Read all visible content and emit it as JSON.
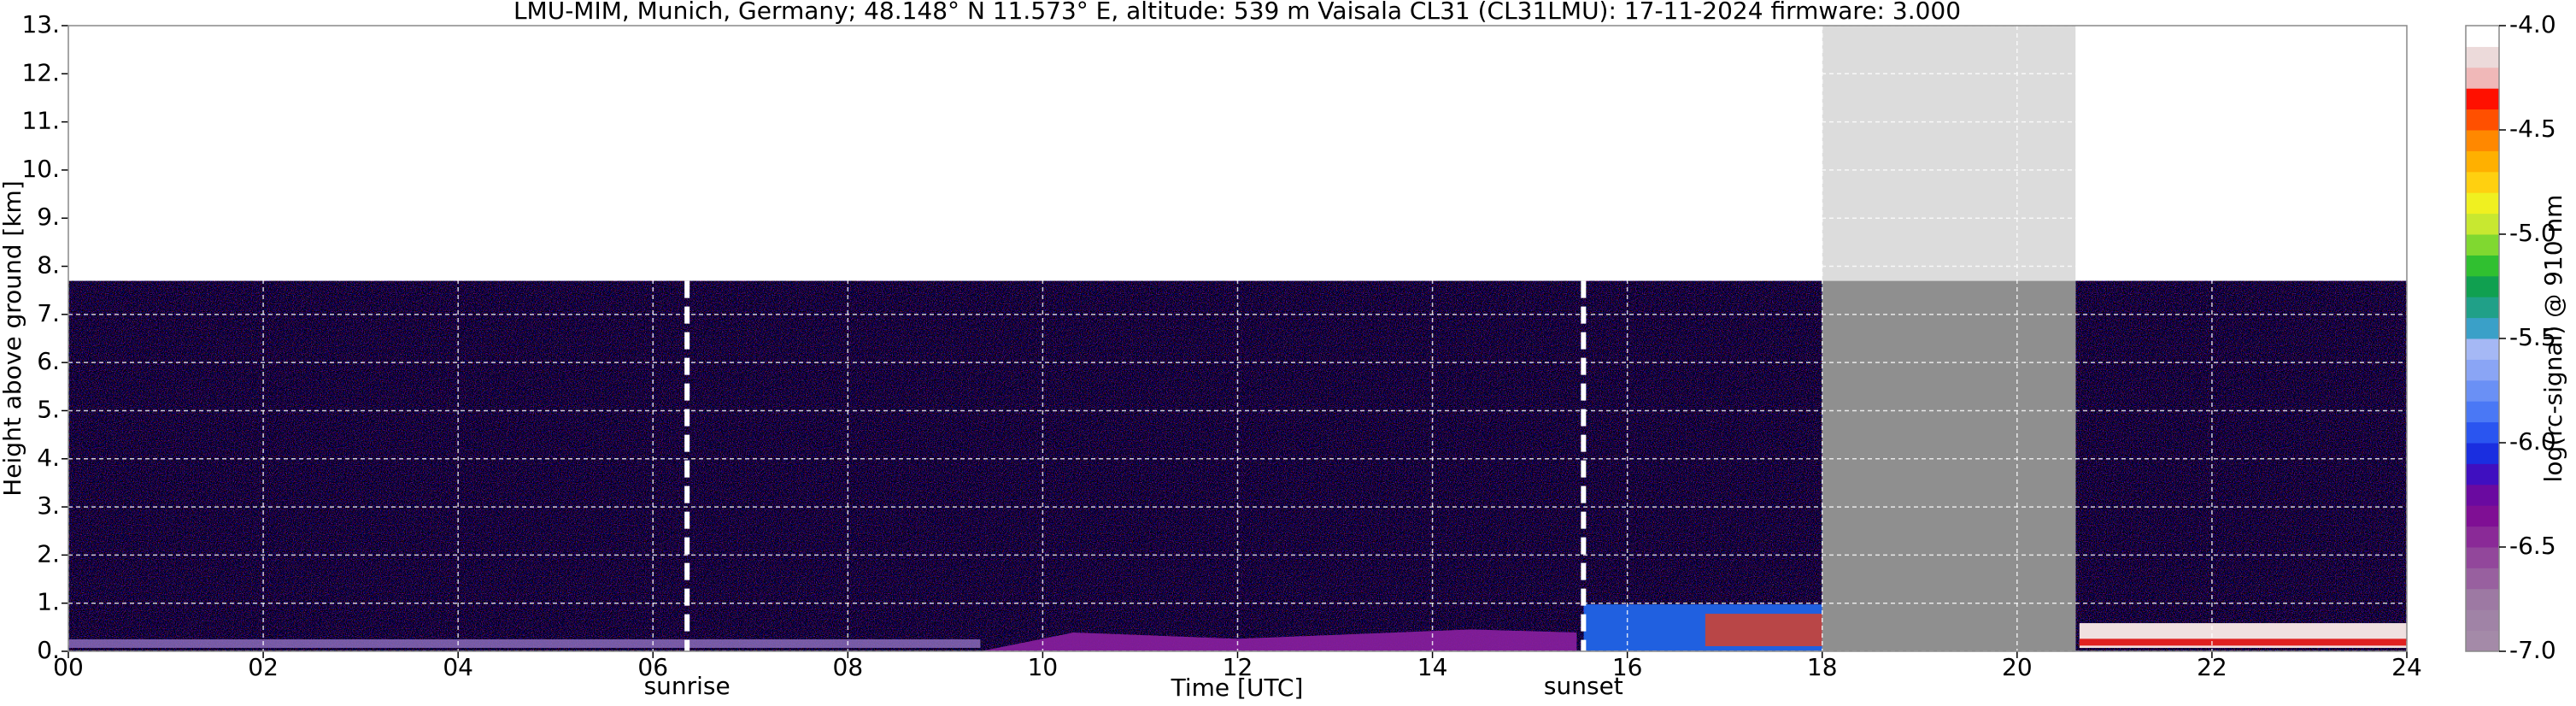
{
  "chart_data": {
    "type": "heatmap",
    "title": "LMU-MIM, Munich, Germany; 48.148° N 11.573° E, altitude: 539 m    Vaisala CL31 (CL31LMU): 17-11-2024    firmware: 3.000",
    "xlabel": "Time [UTC]",
    "ylabel": "Height above ground [km]",
    "xlim": [
      0,
      24
    ],
    "ylim": [
      0,
      13
    ],
    "xticks": [
      {
        "value": 0,
        "label": "00"
      },
      {
        "value": 2,
        "label": "02"
      },
      {
        "value": 4,
        "label": "04"
      },
      {
        "value": 6,
        "label": "06"
      },
      {
        "value": 8,
        "label": "08"
      },
      {
        "value": 10,
        "label": "10"
      },
      {
        "value": 12,
        "label": "12"
      },
      {
        "value": 14,
        "label": "14"
      },
      {
        "value": 16,
        "label": "16"
      },
      {
        "value": 18,
        "label": "18"
      },
      {
        "value": 20,
        "label": "20"
      },
      {
        "value": 22,
        "label": "22"
      },
      {
        "value": 24,
        "label": "24"
      }
    ],
    "yticks": [
      {
        "value": 0,
        "label": "0."
      },
      {
        "value": 1,
        "label": "1."
      },
      {
        "value": 2,
        "label": "2."
      },
      {
        "value": 3,
        "label": "3."
      },
      {
        "value": 4,
        "label": "4."
      },
      {
        "value": 5,
        "label": "5."
      },
      {
        "value": 6,
        "label": "6."
      },
      {
        "value": 7,
        "label": "7."
      },
      {
        "value": 8,
        "label": "8."
      },
      {
        "value": 9,
        "label": "9."
      },
      {
        "value": 10,
        "label": "10."
      },
      {
        "value": 11,
        "label": "11."
      },
      {
        "value": 12,
        "label": "12."
      },
      {
        "value": 13,
        "label": "13."
      }
    ],
    "grid": true,
    "annotations": [
      {
        "text": "sunrise",
        "x": 6.35
      },
      {
        "text": "sunset",
        "x": 15.55
      }
    ],
    "gaps": [
      [
        18,
        20.6
      ]
    ],
    "colorbar": {
      "label": "log(rc-signal) @ 910 nm",
      "lim": [
        -7,
        -4
      ],
      "ticks": [
        {
          "value": -7,
          "label": "-7.0"
        },
        {
          "value": -6.5,
          "label": "-6.5"
        },
        {
          "value": -6,
          "label": "-6.0"
        },
        {
          "value": -5.5,
          "label": "-5.5"
        },
        {
          "value": -5,
          "label": "-5.0"
        },
        {
          "value": -4.5,
          "label": "-4.5"
        },
        {
          "value": -4,
          "label": "-4.0"
        }
      ],
      "colors": [
        "#a48aa8",
        "#a083a6",
        "#9d79a3",
        "#98609f",
        "#92479b",
        "#8a2a97",
        "#7f0f94",
        "#6a0aa0",
        "#3f0fc0",
        "#1a2ee0",
        "#2a55f0",
        "#4a78f5",
        "#6a90f5",
        "#8aa5f5",
        "#a5b8f5",
        "#3aa0c8",
        "#20a088",
        "#10a050",
        "#30c030",
        "#80d830",
        "#c8e830",
        "#f0f020",
        "#ffd010",
        "#ffb000",
        "#ff8800",
        "#ff5000",
        "#ff1000",
        "#f0b8b8",
        "#ecdada",
        "#ffffff"
      ]
    }
  }
}
